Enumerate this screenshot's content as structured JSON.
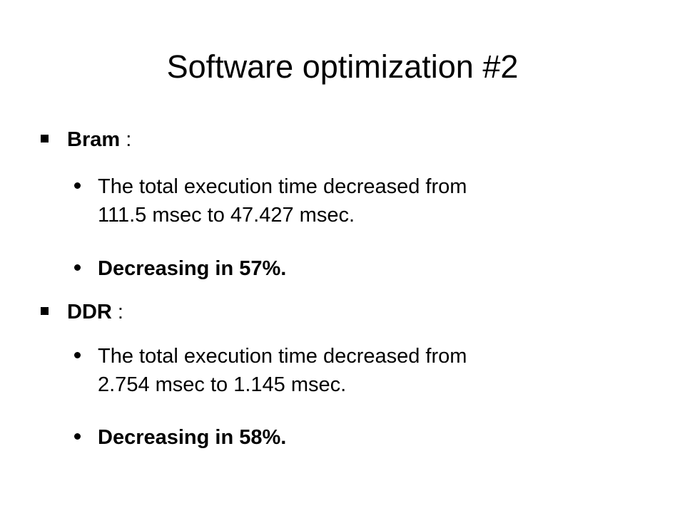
{
  "slide": {
    "title": "Software optimization #2",
    "sections": [
      {
        "heading": "Bram",
        "colon": " :",
        "items": [
          {
            "text_line1": "The total execution time decreased from",
            "text_line2": "111.5 msec to 47.427 msec."
          },
          {
            "text": "Decreasing in 57%."
          }
        ]
      },
      {
        "heading": "DDR",
        "colon": " :",
        "items": [
          {
            "text_line1": "The total execution time decreased from",
            "text_line2": "2.754 msec to 1.145 msec."
          },
          {
            "text": "Decreasing in 58%."
          }
        ]
      }
    ]
  }
}
